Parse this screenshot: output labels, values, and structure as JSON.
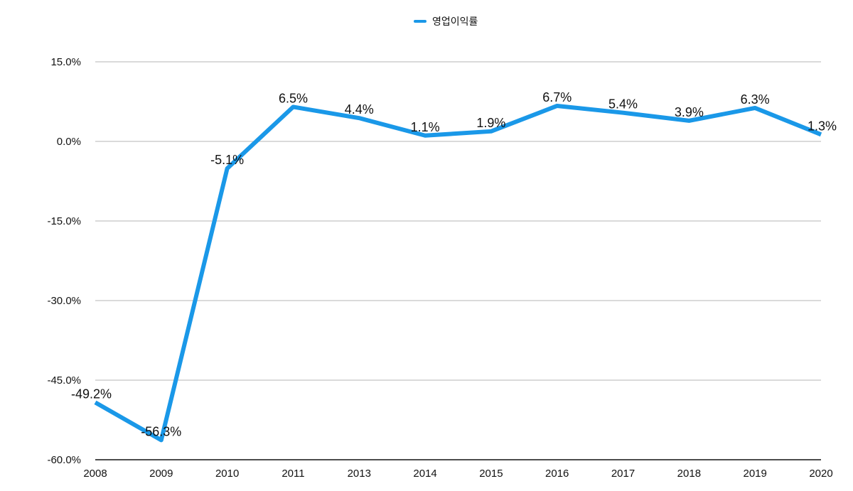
{
  "chart_data": {
    "type": "line",
    "title": "",
    "xlabel": "",
    "ylabel": "",
    "categories": [
      "2008",
      "2009",
      "2010",
      "2011",
      "2013",
      "2014",
      "2015",
      "2016",
      "2017",
      "2018",
      "2019",
      "2020"
    ],
    "series": [
      {
        "name": "영업이익률",
        "color": "#1a98e8",
        "values": [
          -49.2,
          -56.3,
          -5.1,
          6.5,
          4.4,
          1.1,
          1.9,
          6.7,
          5.4,
          3.9,
          6.3,
          1.3
        ],
        "data_labels": [
          "-49.2%",
          "-56.3%",
          "-5.1%",
          "6.5%",
          "4.4%",
          "1.1%",
          "1.9%",
          "6.7%",
          "5.4%",
          "3.9%",
          "6.3%",
          "1.3%"
        ]
      }
    ],
    "ylim": [
      -60,
      15
    ],
    "yticks": [
      15,
      0,
      -15,
      -30,
      -45,
      -60
    ],
    "ytick_labels": [
      "15.0%",
      "0.0%",
      "-15.0%",
      "-30.0%",
      "-45.0%",
      "-60.0%"
    ],
    "grid": true,
    "legend": "top-center"
  }
}
